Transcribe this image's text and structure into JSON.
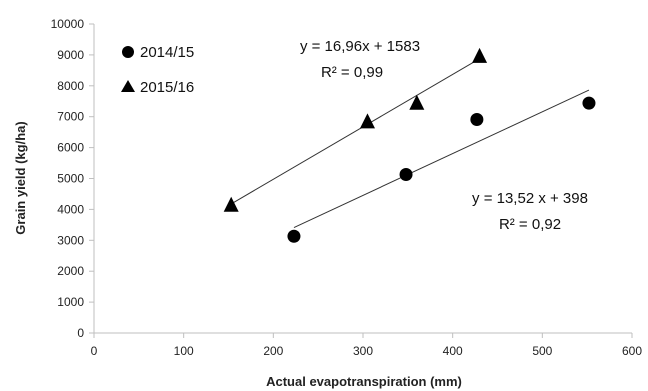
{
  "chart_data": {
    "type": "scatter",
    "title": "",
    "xlabel": "Actual evapotranspiration (mm)",
    "ylabel": "Grain yield (kg/ha)",
    "xlim": [
      0,
      600
    ],
    "ylim": [
      0,
      10000
    ],
    "x_ticks": [
      0,
      100,
      200,
      300,
      400,
      500,
      600
    ],
    "y_ticks": [
      0,
      1000,
      2000,
      3000,
      4000,
      5000,
      6000,
      7000,
      8000,
      9000,
      10000
    ],
    "x_tick_labels": [
      "0",
      "100",
      "200",
      "300",
      "400",
      "500",
      "600"
    ],
    "y_tick_labels": [
      "0",
      "1000",
      "2000",
      "3000",
      "4000",
      "5000",
      "6000",
      "7000",
      "8000",
      "9000",
      "10000"
    ],
    "grid": false,
    "legend_position": "top-left",
    "series": [
      {
        "name": "2014/15",
        "marker": "circle",
        "x": [
          223,
          348,
          427,
          552
        ],
        "y": [
          3130,
          5130,
          6910,
          7440
        ],
        "trendline": {
          "slope": 13.52,
          "intercept": 398,
          "x_range": [
            223,
            552
          ]
        },
        "equation": "y = 13,52  x + 398",
        "r_squared": "R² = 0,92"
      },
      {
        "name": "2015/16",
        "marker": "triangle",
        "x": [
          153,
          305,
          360,
          430
        ],
        "y": [
          4150,
          6850,
          7450,
          8970
        ],
        "trendline": {
          "slope": 16.96,
          "intercept": 1583,
          "x_range": [
            153,
            430
          ]
        },
        "equation": "y = 16,96x + 1583",
        "r_squared": "R² = 0,99"
      }
    ],
    "colors": {
      "marker": "#000000",
      "trendline": "#333333",
      "axis": "#bfbfbf"
    }
  }
}
